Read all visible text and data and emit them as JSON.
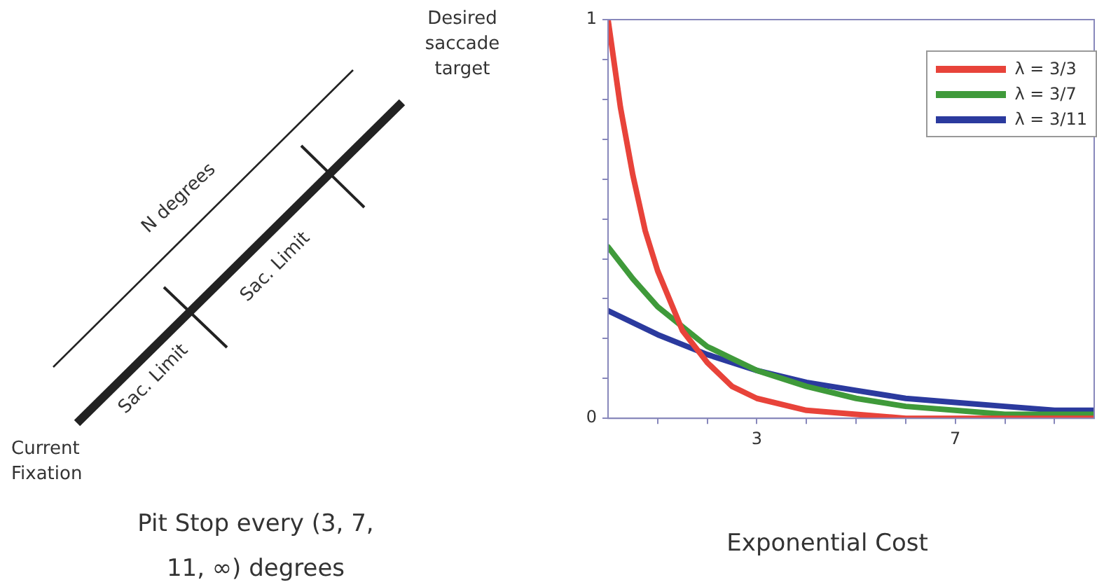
{
  "chart_data": {
    "type": "line",
    "title": "Exponential Cost",
    "annotations": [
      "Desired saccade target",
      "N degrees",
      "Sac. Limit",
      "Sac. Limit",
      "Current Fixation",
      "Pit Stop every (3, 7, 11, ∞) degrees"
    ],
    "series": [
      {
        "name": "λ = 3/3",
        "color": "#e8433a",
        "x": [
          0,
          0.25,
          0.5,
          0.75,
          1,
          1.5,
          2,
          2.5,
          3,
          4,
          5,
          6,
          7,
          8,
          9,
          9.8
        ],
        "values": [
          1,
          0.78,
          0.61,
          0.47,
          0.37,
          0.22,
          0.14,
          0.08,
          0.05,
          0.02,
          0.01,
          0,
          0,
          0,
          0,
          0
        ]
      },
      {
        "name": "λ = 3/7",
        "color": "#3f9a3a",
        "x": [
          0,
          0.5,
          1,
          1.5,
          2,
          2.5,
          3,
          4,
          5,
          6,
          7,
          8,
          9,
          9.8
        ],
        "values": [
          0.43,
          0.35,
          0.28,
          0.23,
          0.18,
          0.15,
          0.12,
          0.08,
          0.05,
          0.03,
          0.02,
          0.01,
          0.01,
          0.01
        ]
      },
      {
        "name": "λ = 3/11",
        "color": "#2b3a9e",
        "x": [
          0,
          1,
          2,
          3,
          4,
          5,
          6,
          7,
          8,
          9,
          9.8
        ],
        "values": [
          0.27,
          0.21,
          0.16,
          0.12,
          0.09,
          0.07,
          0.05,
          0.04,
          0.03,
          0.02,
          0.02
        ]
      }
    ],
    "xlim": [
      0,
      9.8
    ],
    "xticks": [
      {
        "value": 1,
        "label": null
      },
      {
        "value": 2,
        "label": null
      },
      3,
      {
        "value": 4,
        "label": null
      },
      {
        "value": 5,
        "label": null
      },
      {
        "value": 6,
        "label": null
      },
      7,
      {
        "value": 8,
        "label": null
      },
      {
        "value": 9,
        "label": null
      }
    ],
    "ylim": [
      0,
      1
    ],
    "yticks": [
      0,
      {
        "value": 0.1,
        "label": null
      },
      {
        "value": 0.2,
        "label": null
      },
      {
        "value": 0.3,
        "label": null
      },
      {
        "value": 0.4,
        "label": null
      },
      {
        "value": 0.5,
        "label": null
      },
      {
        "value": 0.6,
        "label": null
      },
      {
        "value": 0.7,
        "label": null
      },
      {
        "value": 0.8,
        "label": null
      },
      {
        "value": 0.9,
        "label": null
      },
      1
    ],
    "grid": false,
    "legend": "top right",
    "marker": "none",
    "line_style": "solid"
  }
}
